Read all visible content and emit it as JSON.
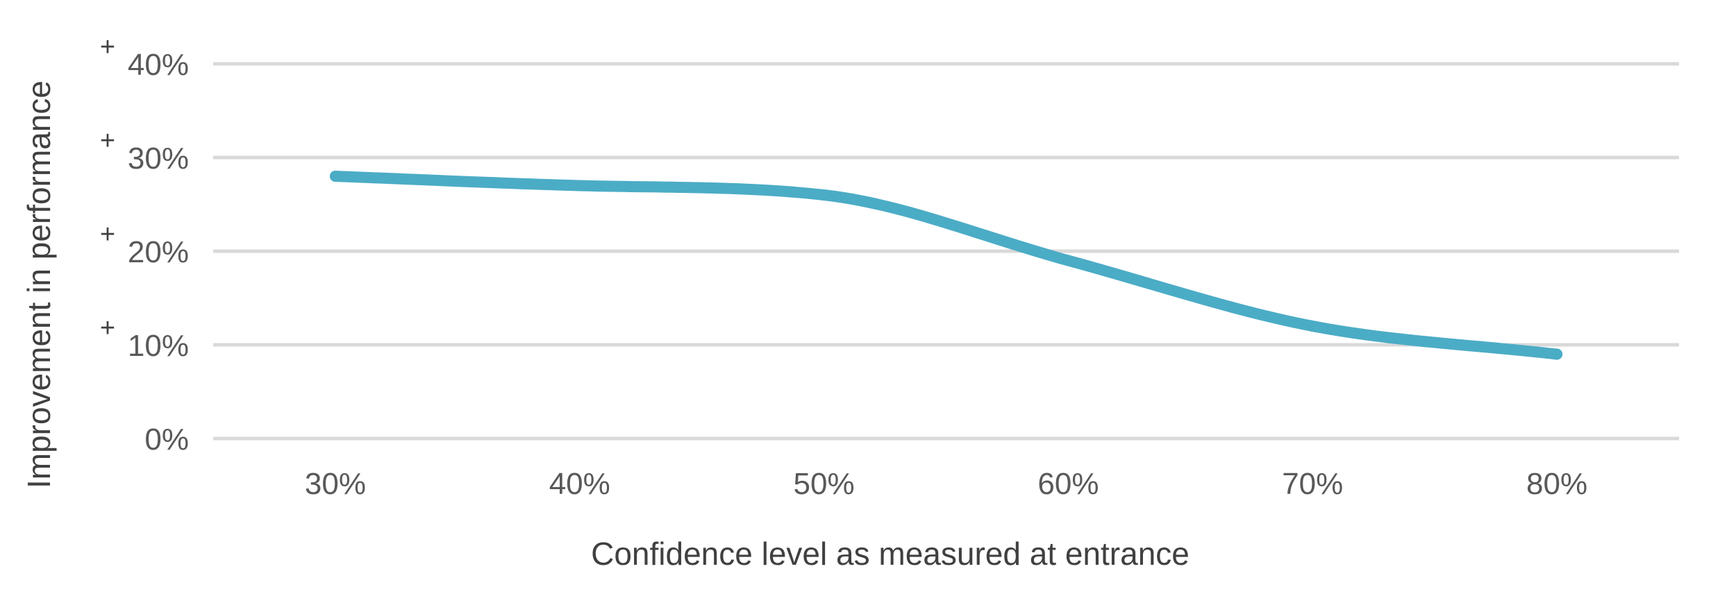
{
  "chart_data": {
    "type": "line",
    "title": "",
    "xlabel": "Confidence level as measured at entrance",
    "ylabel": "Improvement in performance",
    "categories": [
      "30%",
      "40%",
      "50%",
      "60%",
      "70%",
      "80%"
    ],
    "y_ticks": [
      {
        "value": 0,
        "label": "0%",
        "prefix": ""
      },
      {
        "value": 10,
        "label": "10%",
        "prefix": "+"
      },
      {
        "value": 20,
        "label": "20%",
        "prefix": "+"
      },
      {
        "value": 30,
        "label": "30%",
        "prefix": "+"
      },
      {
        "value": 40,
        "label": "40%",
        "prefix": "+"
      }
    ],
    "ylim": [
      0,
      40
    ],
    "grid": true,
    "legend": "none",
    "smooth": true,
    "series": [
      {
        "values": [
          28,
          27,
          26,
          19,
          12,
          9
        ],
        "color": "#4bacc6"
      }
    ]
  }
}
